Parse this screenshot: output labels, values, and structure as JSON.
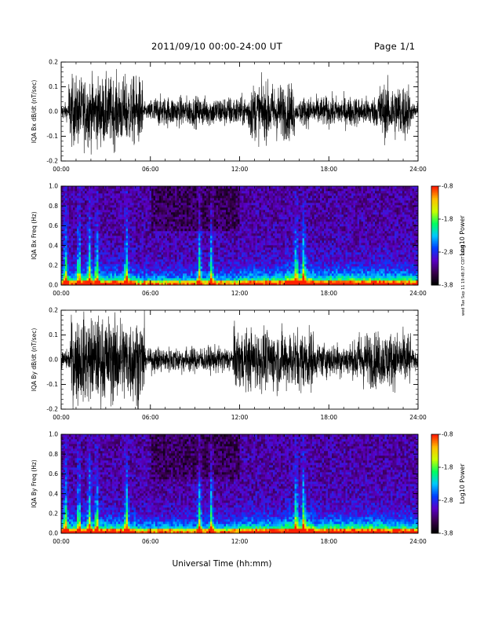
{
  "header": {
    "title": "2011/09/10  00:00-24:00 UT",
    "page_label": "Page 1/1"
  },
  "side_note": "wed Tue Sep 11 19:48:37 CDT 2019",
  "xlabel": "Universal Time (hh:mm)",
  "chart_data": [
    {
      "type": "line",
      "title": "",
      "ylabel": "IQA Bx dB/dt (nT/sec)",
      "xlabel": "",
      "x_ticks": [
        "00:00",
        "06:00",
        "12:00",
        "18:00",
        "24:00"
      ],
      "y_ticks": [
        "-0.2",
        "-0.1",
        "0.0",
        "0.1",
        "0.2"
      ],
      "xlim": [
        0,
        24
      ],
      "ylim": [
        -0.2,
        0.2
      ],
      "series": [
        {
          "values": "dense magnetometer time series, clipped at ±0.2 during 00:30–05:30, 12:40–15:40 and 21:30–23:30"
        }
      ]
    },
    {
      "type": "heatmap",
      "title": "",
      "ylabel": "IQA Bx Freq (Hz)",
      "xlabel": "",
      "x_ticks": [
        "00:00",
        "06:00",
        "12:00",
        "18:00",
        "24:00"
      ],
      "y_ticks": [
        "0.0",
        "0.2",
        "0.4",
        "0.6",
        "0.8",
        "1.0"
      ],
      "xlim": [
        0,
        24
      ],
      "ylim": [
        0,
        1.0
      ],
      "colorbar": {
        "label": "Log10 Power",
        "ticks": [
          "-0.8",
          "-1.8",
          "-2.8",
          "-3.8"
        ],
        "range": [
          -3.8,
          -0.8
        ]
      },
      "bright_columns_hours": [
        0.3,
        1.2,
        1.9,
        2.4,
        4.4,
        9.3,
        10.1,
        15.8,
        16.3
      ]
    },
    {
      "type": "line",
      "title": "",
      "ylabel": "IQA By dB/dt (nT/sec)",
      "xlabel": "",
      "x_ticks": [
        "00:00",
        "06:00",
        "12:00",
        "18:00",
        "24:00"
      ],
      "y_ticks": [
        "-0.2",
        "-0.1",
        "0.0",
        "0.1",
        "0.2"
      ],
      "xlim": [
        0,
        24
      ],
      "ylim": [
        -0.2,
        0.2
      ],
      "series": [
        {
          "values": "dense magnetometer time series, clipped at ±0.2 during 00:40–05:40, 11:40–17:00 and 20:00–23:30"
        }
      ]
    },
    {
      "type": "heatmap",
      "title": "",
      "ylabel": "IQA By Freq (Hz)",
      "xlabel": "Universal Time (hh:mm)",
      "x_ticks": [
        "00:00",
        "06:00",
        "12:00",
        "18:00",
        "24:00"
      ],
      "y_ticks": [
        "0.0",
        "0.2",
        "0.4",
        "0.6",
        "0.8",
        "1.0"
      ],
      "xlim": [
        0,
        24
      ],
      "ylim": [
        0,
        1.0
      ],
      "colorbar": {
        "label": "Log10 Power",
        "ticks": [
          "-0.8",
          "-1.8",
          "-2.8",
          "-3.8"
        ],
        "range": [
          -3.8,
          -0.8
        ]
      },
      "bright_columns_hours": [
        0.3,
        1.2,
        1.9,
        2.4,
        4.4,
        9.3,
        10.1,
        15.8,
        16.3
      ]
    }
  ],
  "colors": {
    "trace": "#000000",
    "background": "#ffffff",
    "spectrogram_floor": "#1a0022",
    "colormap": [
      "#000000",
      "#3a0050",
      "#5a00c8",
      "#0040ff",
      "#00c8ff",
      "#00ff60",
      "#c8ff00",
      "#ffc000",
      "#ff2000"
    ]
  }
}
